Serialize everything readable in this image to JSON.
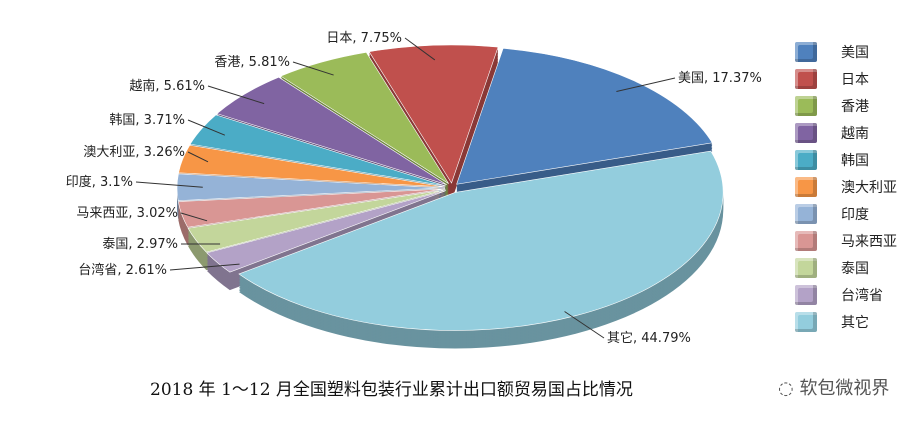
{
  "chart_data": {
    "type": "pie",
    "title": "2018 年 1～12 月全国塑料包装行业累计出口额贸易国占比情况",
    "legend_placement": "right",
    "slices": [
      {
        "name": "美国",
        "value": 17.37,
        "label": "美国, 17.37%",
        "color": "#4f81bd"
      },
      {
        "name": "其它",
        "value": 44.79,
        "label": "其它, 44.79%",
        "color": "#93cddd"
      },
      {
        "name": "台湾省",
        "value": 2.61,
        "label": "台湾省, 2.61%",
        "color": "#b3a2c7"
      },
      {
        "name": "泰国",
        "value": 2.97,
        "label": "泰国, 2.97%",
        "color": "#c3d69b"
      },
      {
        "name": "马来西亚",
        "value": 3.02,
        "label": "马来西亚, 3.02%",
        "color": "#d99694"
      },
      {
        "name": "印度",
        "value": 3.1,
        "label": "印度, 3.1%",
        "color": "#95b3d7"
      },
      {
        "name": "澳大利亚",
        "value": 3.26,
        "label": "澳大利亚, 3.26%",
        "color": "#f79646"
      },
      {
        "name": "韩国",
        "value": 3.71,
        "label": "韩国, 3.71%",
        "color": "#4bacc6"
      },
      {
        "name": "越南",
        "value": 5.61,
        "label": "越南, 5.61%",
        "color": "#8064a2"
      },
      {
        "name": "香港",
        "value": 5.81,
        "label": "香港, 5.81%",
        "color": "#9bbb59"
      },
      {
        "name": "日本",
        "value": 7.75,
        "label": "日本, 7.75%",
        "color": "#c0504d"
      }
    ],
    "legend": [
      "美国",
      "日本",
      "香港",
      "越南",
      "韩国",
      "澳大利亚",
      "印度",
      "马来西亚",
      "泰国",
      "台湾省",
      "其它"
    ]
  },
  "watermark": "软包微视界"
}
